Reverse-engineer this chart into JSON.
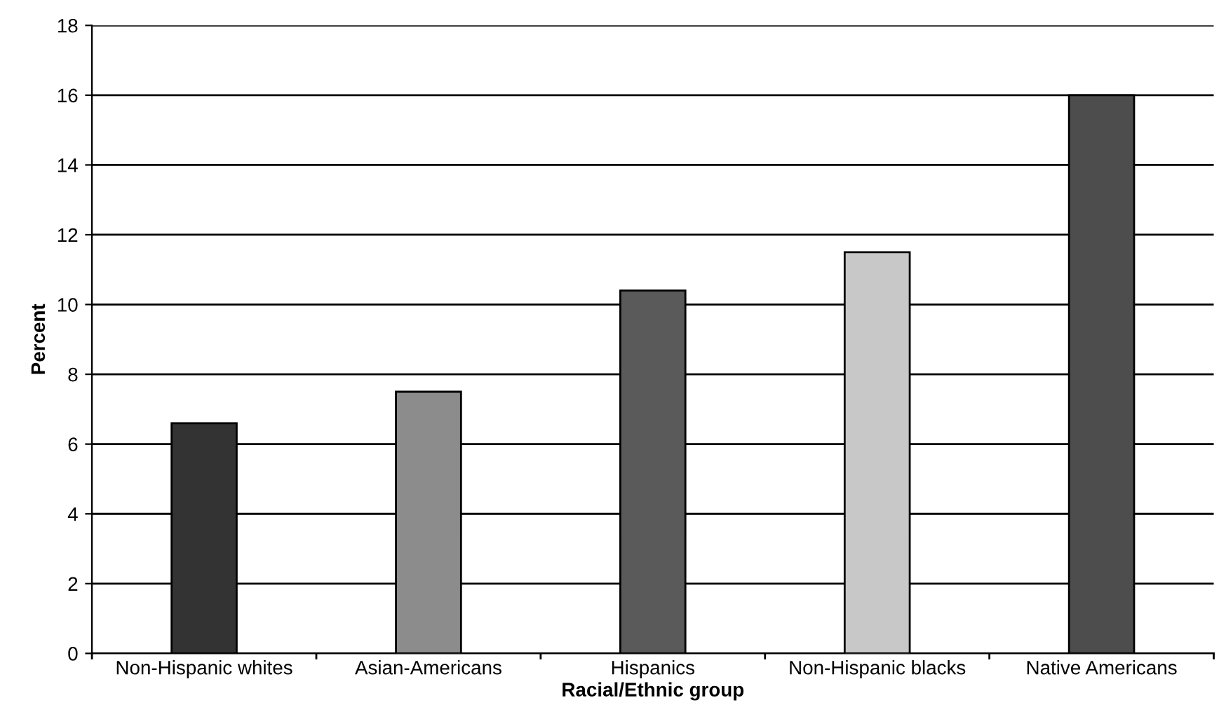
{
  "chart_data": {
    "type": "bar",
    "xlabel": "Racial/Ethnic group",
    "ylabel": "Percent",
    "categories": [
      "Non-Hispanic whites",
      "Asian-Americans",
      "Hispanics",
      "Non-Hispanic blacks",
      "Native Americans"
    ],
    "values": [
      6.6,
      7.5,
      10.4,
      11.5,
      16.0
    ],
    "colors": [
      "#333333",
      "#8c8c8c",
      "#5a5a5a",
      "#c8c8c8",
      "#4d4d4d"
    ],
    "ylim": [
      0,
      18
    ],
    "yticks": [
      0,
      2,
      4,
      6,
      8,
      10,
      12,
      14,
      16,
      18
    ],
    "grid": "y"
  }
}
